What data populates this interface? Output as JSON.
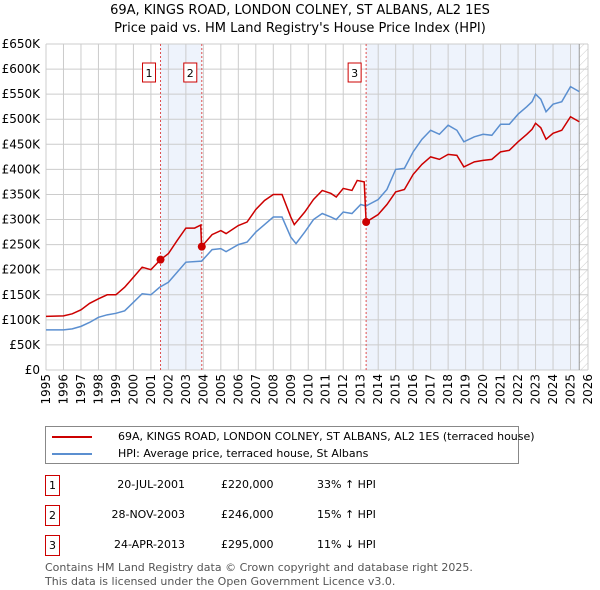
{
  "chart_data": {
    "type": "line",
    "title": "69A, KINGS ROAD, LONDON COLNEY, ST ALBANS, AL2 1ES",
    "subtitle": "Price paid vs. HM Land Registry's House Price Index (HPI)",
    "xlim": [
      1995,
      2026
    ],
    "ylim": [
      0,
      650000
    ],
    "y_ticks": [
      "£0",
      "£50K",
      "£100K",
      "£150K",
      "£200K",
      "£250K",
      "£300K",
      "£350K",
      "£400K",
      "£450K",
      "£500K",
      "£550K",
      "£600K",
      "£650K"
    ],
    "x_ticks": [
      "1995",
      "1996",
      "1997",
      "1998",
      "1999",
      "2000",
      "2001",
      "2002",
      "2003",
      "2004",
      "2005",
      "2006",
      "2007",
      "2008",
      "2009",
      "2010",
      "2011",
      "2012",
      "2013",
      "2014",
      "2015",
      "2016",
      "2017",
      "2018",
      "2019",
      "2020",
      "2021",
      "2022",
      "2023",
      "2024",
      "2025",
      "2026"
    ],
    "grid": true,
    "colors": {
      "property": "#cc0000",
      "hpi": "#5b8fd0",
      "shade": "#eef3fc"
    },
    "series": [
      {
        "name": "69A, KINGS ROAD, LONDON COLNEY, ST ALBANS, AL2 1ES (terraced house)",
        "points": [
          [
            1995,
            107
          ],
          [
            1996,
            108
          ],
          [
            1996.5,
            112
          ],
          [
            1997,
            120
          ],
          [
            1997.5,
            133
          ],
          [
            1998,
            142
          ],
          [
            1998.5,
            150
          ],
          [
            1999,
            150
          ],
          [
            1999.5,
            165
          ],
          [
            2000,
            185
          ],
          [
            2000.5,
            205
          ],
          [
            2001,
            200
          ],
          [
            2001.55,
            220
          ],
          [
            2002,
            232
          ],
          [
            2002.5,
            258
          ],
          [
            2003,
            283
          ],
          [
            2003.5,
            283
          ],
          [
            2003.85,
            289
          ],
          [
            2003.9,
            246
          ],
          [
            2004.5,
            270
          ],
          [
            2005,
            278
          ],
          [
            2005.3,
            272
          ],
          [
            2006,
            288
          ],
          [
            2006.5,
            295
          ],
          [
            2007,
            320
          ],
          [
            2007.5,
            338
          ],
          [
            2008,
            350
          ],
          [
            2008.5,
            350
          ],
          [
            2009,
            305
          ],
          [
            2009.2,
            290
          ],
          [
            2009.8,
            315
          ],
          [
            2010.3,
            340
          ],
          [
            2010.8,
            358
          ],
          [
            2011.3,
            352
          ],
          [
            2011.6,
            345
          ],
          [
            2012,
            362
          ],
          [
            2012.5,
            358
          ],
          [
            2012.8,
            378
          ],
          [
            2013.2,
            375
          ],
          [
            2013.31,
            295
          ],
          [
            2014,
            310
          ],
          [
            2014.5,
            330
          ],
          [
            2015,
            355
          ],
          [
            2015.5,
            360
          ],
          [
            2016,
            390
          ],
          [
            2016.5,
            410
          ],
          [
            2017,
            425
          ],
          [
            2017.5,
            420
          ],
          [
            2018,
            430
          ],
          [
            2018.5,
            428
          ],
          [
            2018.9,
            405
          ],
          [
            2019.5,
            415
          ],
          [
            2020,
            418
          ],
          [
            2020.5,
            420
          ],
          [
            2021,
            435
          ],
          [
            2021.5,
            438
          ],
          [
            2022,
            455
          ],
          [
            2022.5,
            470
          ],
          [
            2022.8,
            480
          ],
          [
            2023,
            492
          ],
          [
            2023.3,
            483
          ],
          [
            2023.6,
            460
          ],
          [
            2024,
            472
          ],
          [
            2024.5,
            478
          ],
          [
            2025,
            505
          ],
          [
            2025.5,
            495
          ]
        ]
      },
      {
        "name": "HPI: Average price, terraced house, St Albans",
        "points": [
          [
            1995,
            80
          ],
          [
            1996,
            80
          ],
          [
            1996.5,
            82
          ],
          [
            1997,
            87
          ],
          [
            1997.5,
            95
          ],
          [
            1998,
            105
          ],
          [
            1998.5,
            110
          ],
          [
            1999,
            113
          ],
          [
            1999.5,
            118
          ],
          [
            2000,
            135
          ],
          [
            2000.5,
            152
          ],
          [
            2001,
            150
          ],
          [
            2001.5,
            165
          ],
          [
            2002,
            175
          ],
          [
            2002.5,
            195
          ],
          [
            2003,
            215
          ],
          [
            2003.9,
            217
          ],
          [
            2004.5,
            240
          ],
          [
            2005,
            242
          ],
          [
            2005.3,
            236
          ],
          [
            2006,
            250
          ],
          [
            2006.5,
            255
          ],
          [
            2007,
            275
          ],
          [
            2007.5,
            290
          ],
          [
            2008,
            305
          ],
          [
            2008.5,
            305
          ],
          [
            2009,
            265
          ],
          [
            2009.3,
            252
          ],
          [
            2009.8,
            275
          ],
          [
            2010.3,
            300
          ],
          [
            2010.8,
            312
          ],
          [
            2011.3,
            305
          ],
          [
            2011.6,
            300
          ],
          [
            2012,
            315
          ],
          [
            2012.5,
            312
          ],
          [
            2013,
            330
          ],
          [
            2013.3,
            327
          ],
          [
            2014,
            340
          ],
          [
            2014.5,
            360
          ],
          [
            2015,
            400
          ],
          [
            2015.5,
            402
          ],
          [
            2016,
            435
          ],
          [
            2016.5,
            460
          ],
          [
            2017,
            478
          ],
          [
            2017.5,
            470
          ],
          [
            2018,
            488
          ],
          [
            2018.5,
            478
          ],
          [
            2018.9,
            455
          ],
          [
            2019.5,
            465
          ],
          [
            2020,
            470
          ],
          [
            2020.5,
            468
          ],
          [
            2021,
            490
          ],
          [
            2021.5,
            490
          ],
          [
            2022,
            510
          ],
          [
            2022.5,
            525
          ],
          [
            2022.8,
            535
          ],
          [
            2023,
            550
          ],
          [
            2023.3,
            540
          ],
          [
            2023.6,
            515
          ],
          [
            2024,
            530
          ],
          [
            2024.5,
            535
          ],
          [
            2025,
            565
          ],
          [
            2025.5,
            555
          ]
        ]
      }
    ],
    "y_unit": "thousands GBP",
    "sales": [
      {
        "label": "1",
        "x": 2001.55,
        "price": 220
      },
      {
        "label": "2",
        "x": 2003.91,
        "price": 246
      },
      {
        "label": "3",
        "x": 2013.31,
        "price": 295
      }
    ],
    "shaded_ranges": [
      [
        2001.55,
        2003.91
      ],
      [
        2013.31,
        2025.5
      ]
    ],
    "forecast_hatch_from": 2025.5
  },
  "legend": {
    "property": "69A, KINGS ROAD, LONDON COLNEY, ST ALBANS, AL2 1ES (terraced house)",
    "hpi": "HPI: Average price, terraced house, St Albans"
  },
  "transactions": [
    {
      "num": "1",
      "date": "20-JUL-2001",
      "price": "£220,000",
      "hpi": "33% ↑ HPI"
    },
    {
      "num": "2",
      "date": "28-NOV-2003",
      "price": "£246,000",
      "hpi": "15% ↑ HPI"
    },
    {
      "num": "3",
      "date": "24-APR-2013",
      "price": "£295,000",
      "hpi": "11% ↓ HPI"
    }
  ],
  "footer": {
    "line1": "Contains HM Land Registry data © Crown copyright and database right 2025.",
    "line2": "This data is licensed under the Open Government Licence v3.0."
  }
}
